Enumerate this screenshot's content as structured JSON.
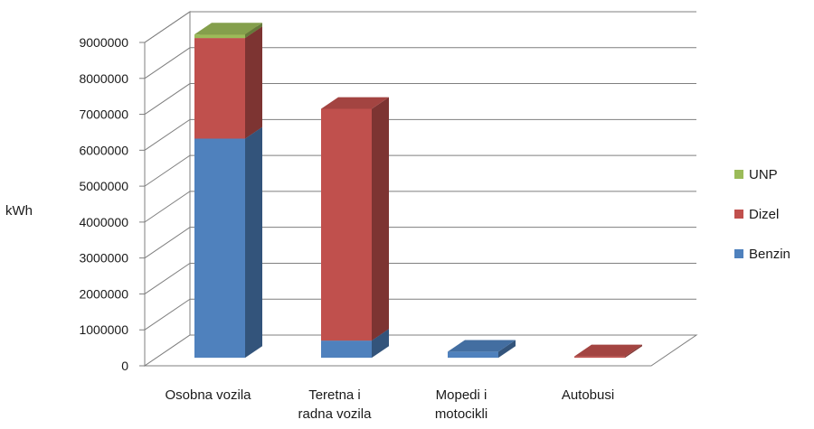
{
  "chart_data": {
    "type": "bar",
    "stacked": true,
    "three_d": true,
    "categories": [
      "Osobna vozila",
      "Teretna i radna vozila",
      "Mopedi i motocikli",
      "Autobusi"
    ],
    "category_label_lines": [
      [
        "Osobna vozila"
      ],
      [
        "Teretna i",
        "radna vozila"
      ],
      [
        "Mopedi i",
        "motocikli"
      ],
      [
        "Autobusi"
      ]
    ],
    "series": [
      {
        "name": "Benzin",
        "values": [
          6100000,
          480000,
          170000,
          0
        ],
        "color": "#4f81bd"
      },
      {
        "name": "Dizel",
        "values": [
          2800000,
          6450000,
          0,
          40000
        ],
        "color": "#c0504d"
      },
      {
        "name": "UNP",
        "values": [
          100000,
          0,
          0,
          0
        ],
        "color": "#9bbb59"
      }
    ],
    "legend_order": [
      "UNP",
      "Dizel",
      "Benzin"
    ],
    "ylabel": "kWh",
    "xlabel": "",
    "title": "",
    "ylim": [
      0,
      9000000
    ],
    "yticks": [
      "0",
      "1000000",
      "2000000",
      "3000000",
      "4000000",
      "5000000",
      "6000000",
      "7000000",
      "8000000",
      "9000000"
    ],
    "grid": true,
    "legend_position": "right"
  }
}
